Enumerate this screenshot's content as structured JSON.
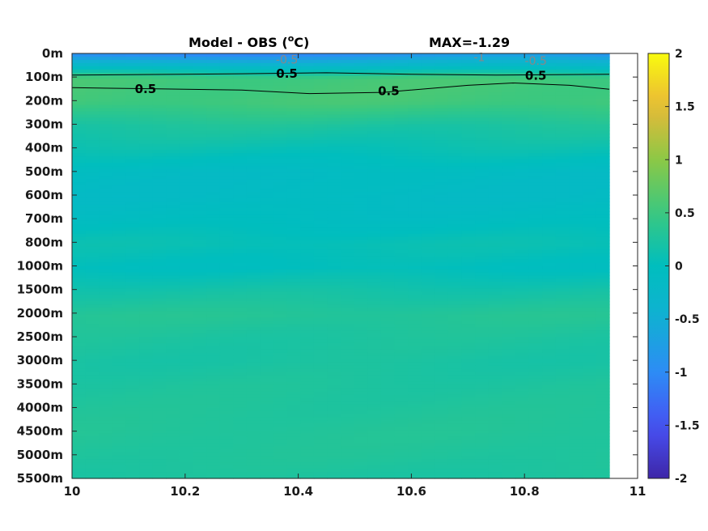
{
  "chart_data": {
    "type": "heatmap",
    "title": "Model - OBS (°C)",
    "title_main": "Model - OBS (",
    "title_degree": "o",
    "title_unit": "C)",
    "max_label": "MAX=-1.29",
    "xlim": [
      10,
      11
    ],
    "x_data_max": 10.95,
    "x_ticks": [
      10,
      10.2,
      10.4,
      10.6,
      10.8,
      11
    ],
    "x_tick_labels": [
      "10",
      "10.2",
      "10.4",
      "10.6",
      "10.8",
      "11"
    ],
    "y_tick_labels": [
      "0m",
      "100m",
      "200m",
      "300m",
      "400m",
      "500m",
      "600m",
      "700m",
      "800m",
      "1000m",
      "1500m",
      "2000m",
      "2500m",
      "3000m",
      "3500m",
      "4000m",
      "4500m",
      "5000m",
      "5500m"
    ],
    "colorbar": {
      "range": [
        -2,
        2
      ],
      "ticks": [
        2,
        1.5,
        1,
        0.5,
        0,
        -0.5,
        -1,
        -1.5,
        -2
      ],
      "tick_labels": [
        "2",
        "1.5",
        "1",
        "0.5",
        "0",
        "-0.5",
        "-1",
        "-1.5",
        "-2"
      ],
      "colormap": "parula"
    },
    "depth_profile": [
      -0.9,
      0.55,
      0.55,
      0.25,
      0.08,
      -0.1,
      -0.12,
      -0.05,
      0.08,
      0.0,
      0.18,
      0.32,
      0.25,
      0.22,
      0.26,
      0.28,
      0.3,
      0.28,
      0.24
    ],
    "contours": [
      {
        "level": 0.5,
        "label": "0.5",
        "style": "black"
      },
      {
        "level": -0.5,
        "label": "-0.5",
        "style": "grey"
      },
      {
        "level": -1,
        "label": "-1",
        "style": "grey"
      }
    ],
    "contour_labels": [
      {
        "text": "0.5",
        "x": 10.13,
        "depth_index": 1.5
      },
      {
        "text": "0.5",
        "x": 10.38,
        "depth_index": 0.85
      },
      {
        "text": "0.5",
        "x": 10.56,
        "depth_index": 1.6
      },
      {
        "text": "0.5",
        "x": 10.82,
        "depth_index": 0.95
      },
      {
        "text": "-0.5",
        "x": 10.38,
        "depth_index": 0.25
      },
      {
        "text": "-1",
        "x": 10.72,
        "depth_index": 0.15
      },
      {
        "text": "-0.5",
        "x": 10.82,
        "depth_index": 0.3
      }
    ]
  }
}
